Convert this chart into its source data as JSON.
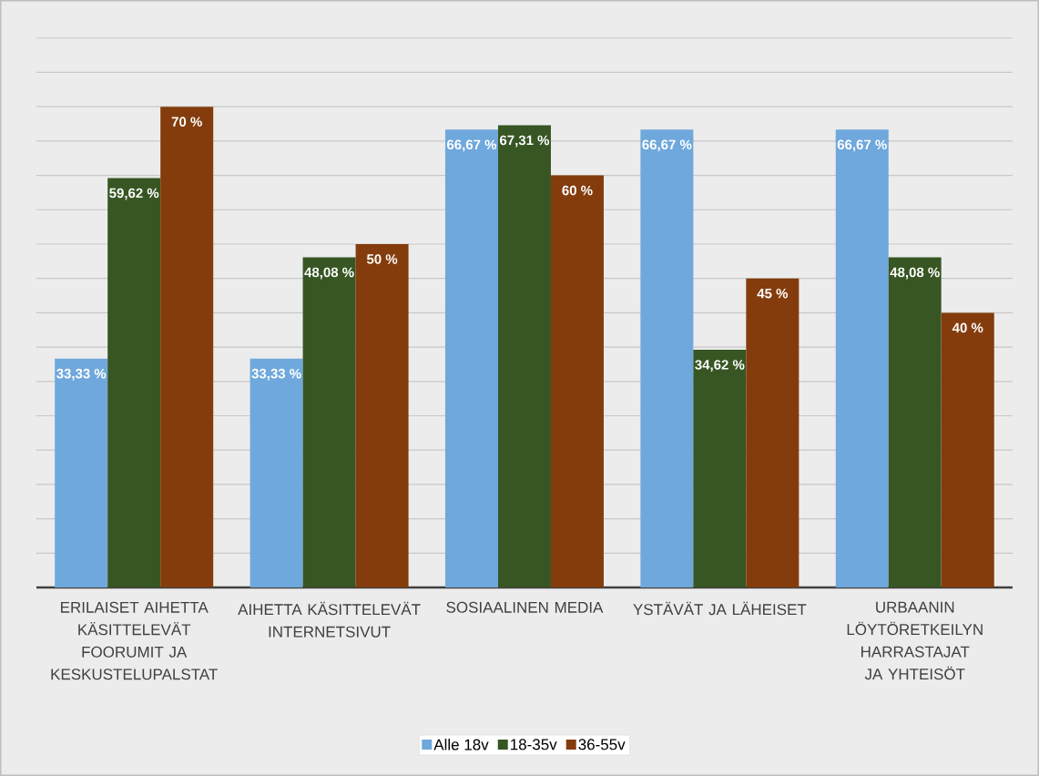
{
  "chart_data": {
    "type": "bar",
    "categories": [
      "ERILAISET AIHETTA KÄSITTELEVÄT FOORUMIT JA KESKUSTELUPALSTAT",
      "AIHETTA KÄSITTELEVÄT INTERNETSIVUT",
      "SOSIAALINEN MEDIA",
      "YSTÄVÄT JA LÄHEISET",
      "URBAANIN LÖYTÖRETKEILYN HARRASTAJAT JA YHTEISÖT"
    ],
    "series": [
      {
        "name": "Alle 18v",
        "color": "#6fa8dc",
        "values": [
          33.33,
          33.33,
          66.67,
          66.67,
          66.67
        ],
        "value_labels": [
          "33,33 %",
          "33,33 %",
          "66,67 %",
          "66,67 %",
          "66,67 %"
        ]
      },
      {
        "name": "18-35v",
        "color": "#375623",
        "values": [
          59.62,
          48.08,
          67.31,
          34.62,
          48.08
        ],
        "value_labels": [
          "59,62 %",
          "48,08 %",
          "67,31 %",
          "34,62 %",
          "48,08 %"
        ]
      },
      {
        "name": "36-55v",
        "color": "#843c0c",
        "values": [
          70,
          50,
          60,
          45,
          40
        ],
        "value_labels": [
          "70 %",
          "50 %",
          "60 %",
          "45 %",
          "40 %"
        ]
      }
    ],
    "grid": "y",
    "legend": "bottom",
    "tick_labels": "x"
  }
}
